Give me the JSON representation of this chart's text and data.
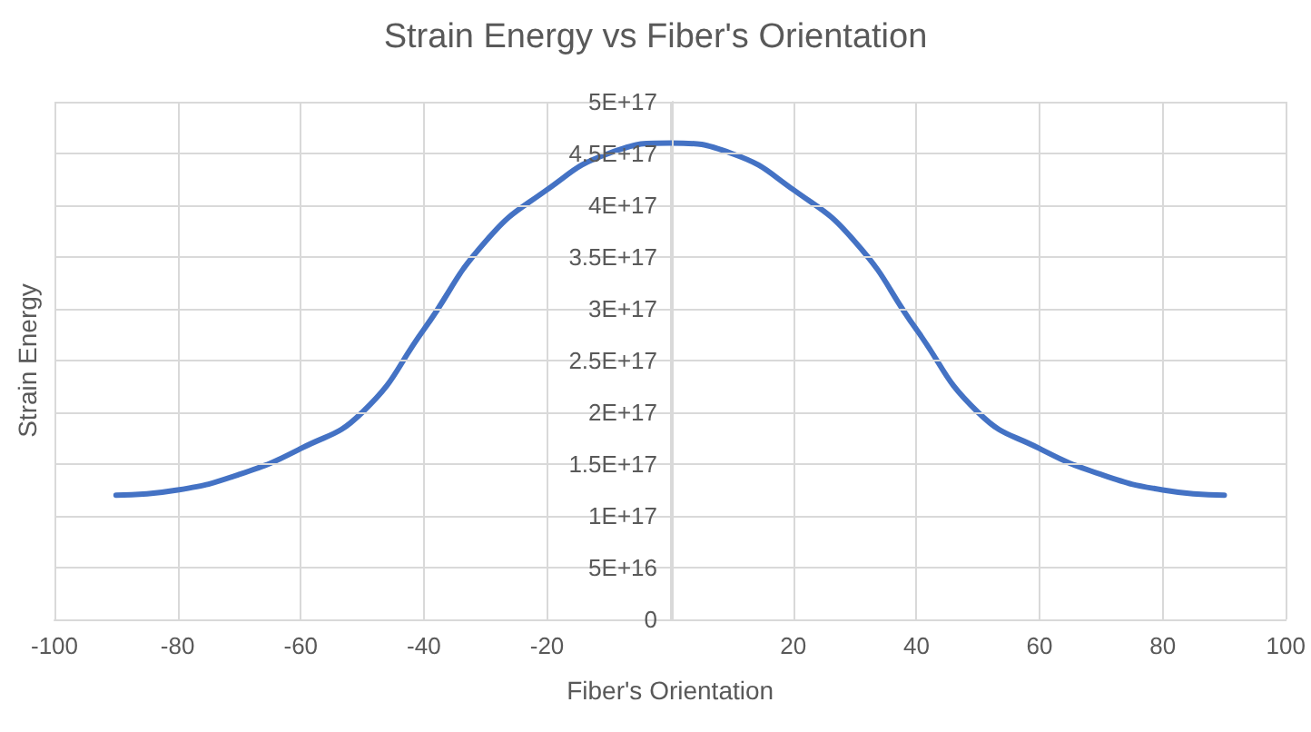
{
  "chart_data": {
    "type": "line",
    "title": "Strain Energy vs Fiber's Orientation",
    "xlabel": "Fiber's Orientation",
    "ylabel": "Strain Energy",
    "x": [
      -90,
      -80,
      -70,
      -60,
      -50,
      -40,
      -30,
      -20,
      -10,
      0,
      10,
      20,
      30,
      40,
      50,
      60,
      70,
      80,
      90
    ],
    "series": [
      {
        "color": "#4472c4",
        "values": [
          1.2e+17,
          1.25e+17,
          1.4e+17,
          1.65e+17,
          2e+17,
          2.8e+17,
          3.65e+17,
          4.15e+17,
          4.5e+17,
          4.6e+17,
          4.5e+17,
          4.15e+17,
          3.65e+17,
          2.8e+17,
          2e+17,
          1.65e+17,
          1.4e+17,
          1.25e+17,
          1.2e+17
        ]
      }
    ],
    "xlim": [
      -100,
      100
    ],
    "xticks": [
      -100,
      -80,
      -60,
      -40,
      -20,
      {
        "value": 0,
        "label": null
      },
      20,
      40,
      60,
      80,
      100
    ],
    "ylim": [
      0,
      5e+17
    ],
    "yticks": [
      {
        "value": 0,
        "label": "0"
      },
      {
        "value": 5e+16,
        "label": "5E+16"
      },
      {
        "value": 1e+17,
        "label": "1E+17"
      },
      {
        "value": 1.5e+17,
        "label": "1.5E+17"
      },
      {
        "value": 2e+17,
        "label": "2E+17"
      },
      {
        "value": 2.5e+17,
        "label": "2.5E+17"
      },
      {
        "value": 3e+17,
        "label": "3E+17"
      },
      {
        "value": 3.5e+17,
        "label": "3.5E+17"
      },
      {
        "value": 4e+17,
        "label": "4E+17"
      },
      {
        "value": 4.5e+17,
        "label": "4.5E+17"
      },
      {
        "value": 5e+17,
        "label": "5E+17"
      }
    ],
    "grid": true,
    "marker": "none",
    "line_style": "solid"
  }
}
